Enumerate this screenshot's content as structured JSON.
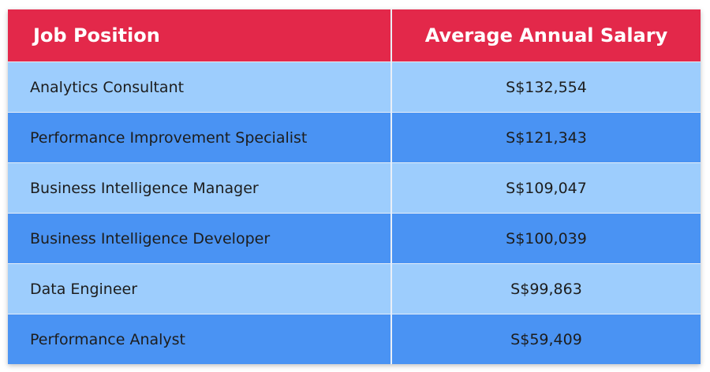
{
  "table": {
    "header": [
      "Job Position",
      "Average Annual Salary"
    ],
    "rows": [
      [
        "Analytics Consultant",
        "S$132,554"
      ],
      [
        "Performance Improvement Specialist",
        "S$121,343"
      ],
      [
        "Business Intelligence Manager",
        "S$109,047"
      ],
      [
        "Business Intelligence Developer",
        "S$100,039"
      ],
      [
        "Data Engineer",
        "S$99,863"
      ],
      [
        "Performance Analyst",
        "S$59,409"
      ]
    ]
  }
}
